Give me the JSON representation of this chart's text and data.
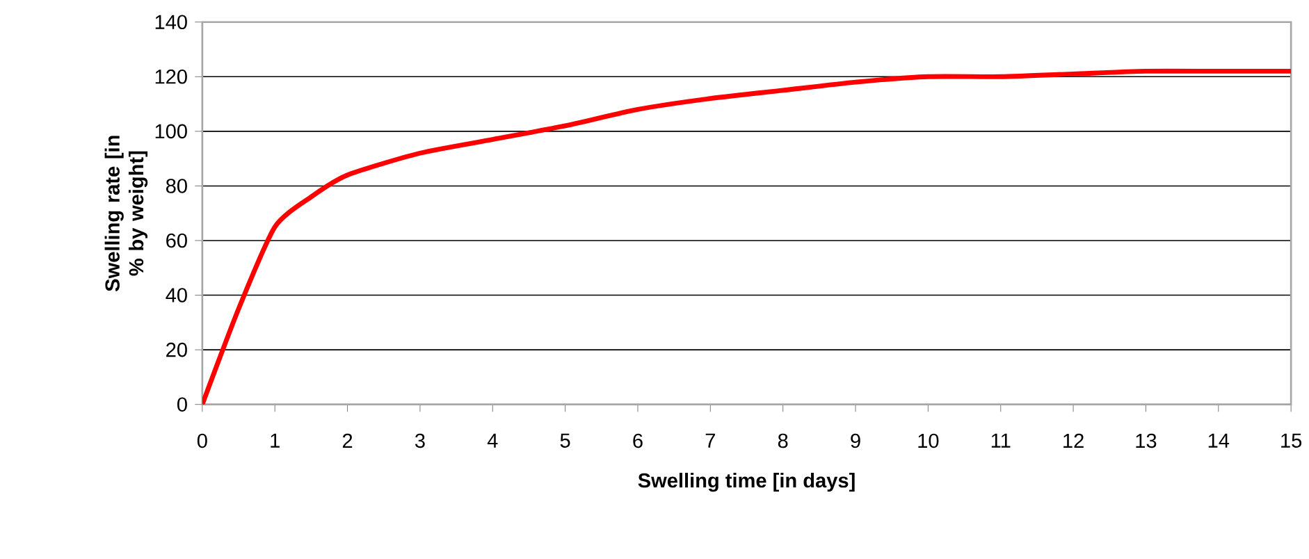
{
  "chart_data": {
    "type": "line",
    "xlabel": "Swelling time [in days]",
    "ylabel": "Swelling rate [in % by weight]",
    "x": [
      0,
      0.5,
      1,
      1.5,
      2,
      3,
      4,
      5,
      6,
      7,
      8,
      9,
      10,
      11,
      12,
      13,
      14,
      15
    ],
    "series": [
      {
        "color": "#ff0000",
        "values": [
          0,
          35,
          65,
          76,
          84,
          92,
          97,
          102,
          108,
          112,
          115,
          118,
          120,
          120,
          121,
          122,
          122,
          122
        ]
      }
    ],
    "xlim": [
      0,
      15
    ],
    "xticks": [
      0,
      1,
      2,
      3,
      4,
      5,
      6,
      7,
      8,
      9,
      10,
      11,
      12,
      13,
      14,
      15
    ],
    "ylim": [
      0,
      140
    ],
    "yticks": [
      0,
      20,
      40,
      60,
      80,
      100,
      120,
      140
    ],
    "grid": "y"
  }
}
